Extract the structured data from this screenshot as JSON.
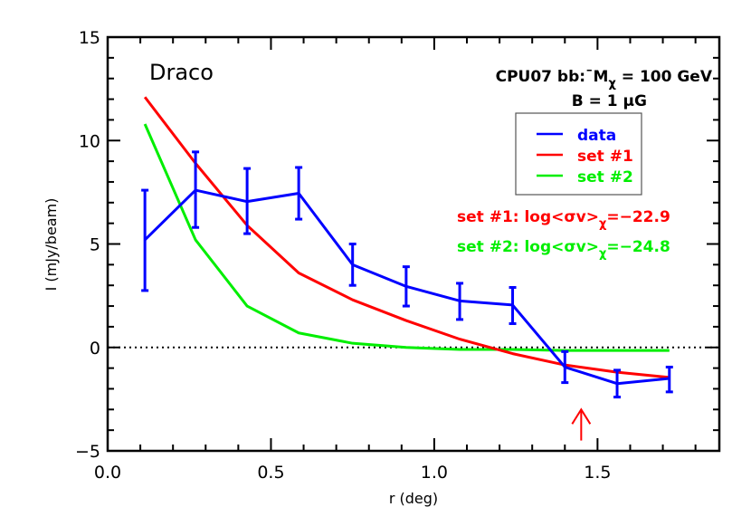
{
  "chart_data": {
    "type": "line",
    "title": "Draco",
    "xlabel": "r (deg)",
    "ylabel": "I (mJy/beam)",
    "xlim": [
      0.0,
      1.873
    ],
    "ylim": [
      -5,
      15
    ],
    "x_ticks": [
      "0.0",
      "0.5",
      "1.0",
      "1.5"
    ],
    "x_tick_values": [
      0.0,
      0.5,
      1.0,
      1.5
    ],
    "y_ticks": [
      "-5",
      "0",
      "5",
      "10",
      "15"
    ],
    "y_tick_values": [
      -5,
      0,
      5,
      10,
      15
    ],
    "grid": false,
    "zero_line": {
      "y": 0,
      "style": "dotted",
      "color": "#000000"
    },
    "x": [
      0.114,
      0.269,
      0.427,
      0.585,
      0.75,
      0.914,
      1.078,
      1.24,
      1.4,
      1.56,
      1.72
    ],
    "series": [
      {
        "name": "data",
        "color": "#0000ff",
        "values": [
          5.2,
          7.6,
          7.05,
          7.45,
          4.0,
          2.95,
          2.25,
          2.05,
          -0.95,
          -1.75,
          -1.5
        ],
        "err_low": [
          2.75,
          5.8,
          5.5,
          6.2,
          3.0,
          2.0,
          1.35,
          1.15,
          -1.7,
          -2.4,
          -2.15
        ],
        "err_high": [
          7.6,
          9.45,
          8.65,
          8.7,
          5.0,
          3.9,
          3.1,
          2.9,
          -0.2,
          -1.1,
          -0.95
        ]
      },
      {
        "name": "set #1",
        "color": "#ff0000",
        "values": [
          12.1,
          8.9,
          5.9,
          3.6,
          2.3,
          1.3,
          0.4,
          -0.3,
          -0.85,
          -1.2,
          -1.45
        ]
      },
      {
        "name": "set #2",
        "color": "#00ee00",
        "values": [
          10.8,
          5.2,
          2.0,
          0.7,
          0.2,
          0.0,
          -0.1,
          -0.1,
          -0.15,
          -0.15,
          -0.15
        ]
      }
    ],
    "legend": {
      "position": "upper-right",
      "entries": [
        {
          "label": "data",
          "color": "#0000ff"
        },
        {
          "label": "set #1",
          "color": "#ff0000"
        },
        {
          "label": "set #2",
          "color": "#00ee00"
        }
      ]
    },
    "annotations": {
      "model_line1": "CPU07 bb:¯M",
      "model_sub": "χ",
      "model_line1_tail": " = 100 GeV",
      "field_line": "B = 1 μG",
      "set1_text": "set #1: log<σv>",
      "set1_sub": "χ",
      "set1_value": "=−22.9",
      "set2_text": "set #2: log<σv>",
      "set2_sub": "χ",
      "set2_value": "=−24.8",
      "arrow": {
        "x": 1.45,
        "y_from": -4.5,
        "y_to": -3.0,
        "color": "#ff0000"
      }
    }
  }
}
